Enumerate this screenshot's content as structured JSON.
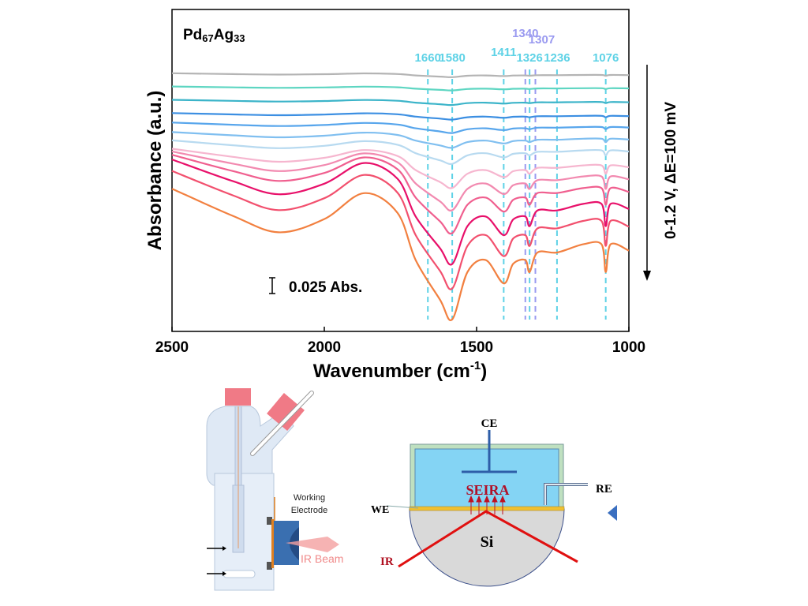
{
  "chart_data": {
    "type": "line",
    "title": "Pd67Ag33",
    "title_main": "Pd",
    "title_sub1": "67",
    "title_mid": "Ag",
    "title_sub2": "33",
    "xlabel": "Wavenumber (cm-1)",
    "xlabel_main": "Wavenumber (cm",
    "xlabel_sup": "-1",
    "xlabel_end": ")",
    "ylabel": "Absorbance (a.u.)",
    "xlim": [
      2500,
      1000
    ],
    "xticks": [
      2500,
      2000,
      1500,
      1000
    ],
    "scale_bar": "0.025 Abs.",
    "scale_bar_value": 0.025,
    "potential_annotation": "0-1.2 V, ΔE=100 mV",
    "grid": false,
    "shape_x": [
      2500,
      2300,
      2150,
      2000,
      1870,
      1760,
      1700,
      1620,
      1580,
      1530,
      1470,
      1411,
      1380,
      1340,
      1326,
      1300,
      1236,
      1150,
      1090,
      1076,
      1060,
      1000
    ],
    "shape_abs": [
      0.098,
      0.055,
      0.029,
      0.05,
      0.091,
      0.06,
      -0.015,
      -0.078,
      -0.109,
      -0.034,
      -0.015,
      -0.052,
      -0.021,
      -0.015,
      -0.034,
      -0.003,
      -0.003,
      0.01,
      0.01,
      -0.034,
      0.01,
      0.0
    ],
    "series": [
      {
        "name": "spectrum-1",
        "color": "#b4b4b4",
        "offset_abs": 0.406,
        "amplitude": 0.03
      },
      {
        "name": "spectrum-2",
        "color": "#5ed6c2",
        "offset_abs": 0.385,
        "amplitude": 0.03
      },
      {
        "name": "spectrum-3",
        "color": "#3bb4c9",
        "offset_abs": 0.363,
        "amplitude": 0.04
      },
      {
        "name": "spectrum-4",
        "color": "#3c8fe2",
        "offset_abs": 0.341,
        "amplitude": 0.05
      },
      {
        "name": "spectrum-5",
        "color": "#58a6ec",
        "offset_abs": 0.323,
        "amplitude": 0.08
      },
      {
        "name": "spectrum-6",
        "color": "#80bff0",
        "offset_abs": 0.304,
        "amplitude": 0.12
      },
      {
        "name": "spectrum-7",
        "color": "#b8daf0",
        "offset_abs": 0.285,
        "amplitude": 0.18
      },
      {
        "name": "spectrum-8",
        "color": "#f6b6cf",
        "offset_abs": 0.26,
        "amplitude": 0.3
      },
      {
        "name": "spectrum-9",
        "color": "#f28ab0",
        "offset_abs": 0.241,
        "amplitude": 0.45
      },
      {
        "name": "spectrum-10",
        "color": "#f05f8f",
        "offset_abs": 0.221,
        "amplitude": 0.6
      },
      {
        "name": "spectrum-11",
        "color": "#e8106a",
        "offset_abs": 0.194,
        "amplitude": 0.8
      },
      {
        "name": "spectrum-12",
        "color": "#f2506e",
        "offset_abs": 0.166,
        "amplitude": 0.9
      },
      {
        "name": "spectrum-13",
        "color": "#f28040",
        "offset_abs": 0.128,
        "amplitude": 1.0
      }
    ],
    "peak_markers": [
      {
        "label": "1660",
        "x": 1660,
        "color": "#5ed2e6"
      },
      {
        "label": "1580",
        "x": 1580,
        "color": "#5ed2e6"
      },
      {
        "label": "1411",
        "x": 1411,
        "color": "#5ed2e6"
      },
      {
        "label": "1340",
        "x": 1340,
        "color": "#9a9af0"
      },
      {
        "label": "1326",
        "x": 1326,
        "color": "#5ed2e6"
      },
      {
        "label": "1307",
        "x": 1307,
        "color": "#9a9af0"
      },
      {
        "label": "1236",
        "x": 1236,
        "color": "#5ed2e6"
      },
      {
        "label": "1076",
        "x": 1076,
        "color": "#5ed2e6"
      }
    ]
  },
  "cell_diagram": {
    "working_electrode_line1": "Working",
    "working_electrode_line2": "Electrode",
    "ir_beam": "IR Beam"
  },
  "seira_diagram": {
    "ce": "CE",
    "re": "RE",
    "we": "WE",
    "seira": "SEIRA",
    "si": "Si",
    "ir": "IR"
  }
}
